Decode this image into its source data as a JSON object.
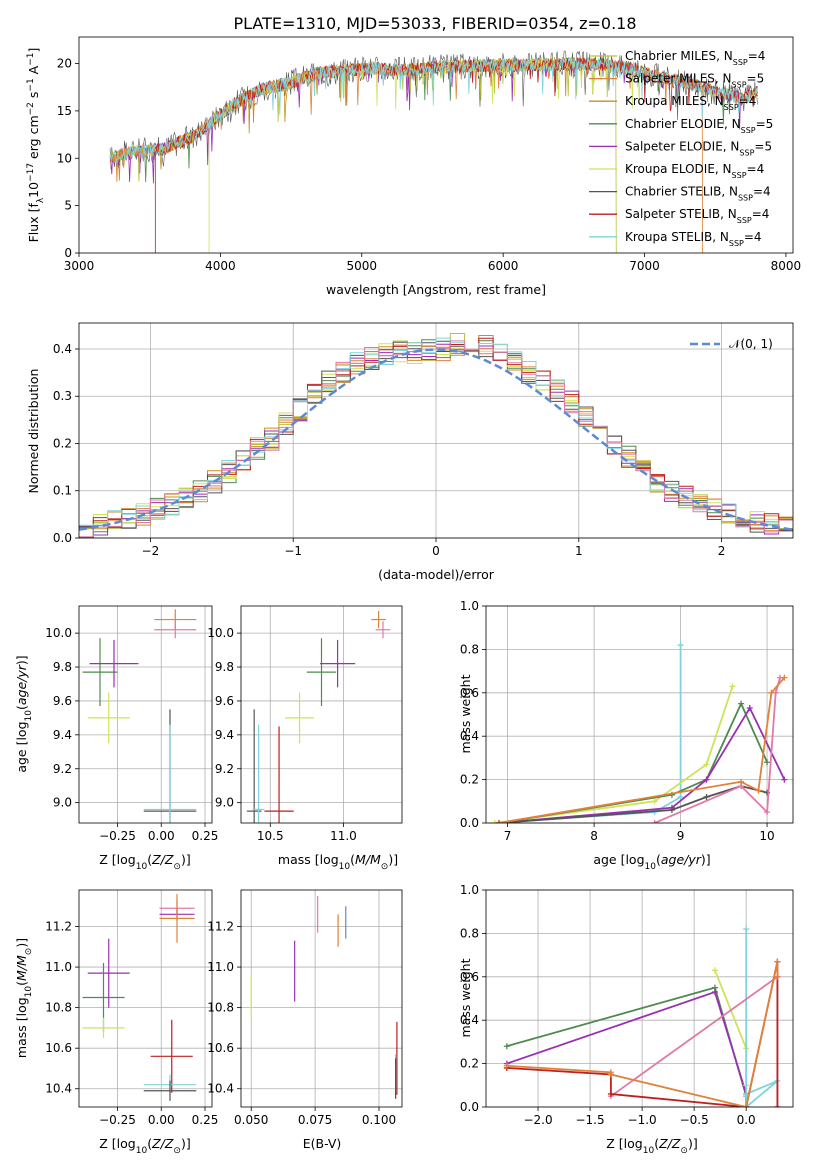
{
  "title": "PLATE=1310, MJD=53033, FIBERID=0354, z=0.18",
  "colors": {
    "Chabrier MILES": "#b5c335",
    "Salpeter MILES": "#e0823a",
    "Kroupa MILES": "#c98f1e",
    "Chabrier ELODIE": "#4f8a4f",
    "Salpeter ELODIE": "#9b2fb3",
    "Kroupa ELODIE": "#cfe35a",
    "Chabrier STELIB": "#555555",
    "Salpeter STELIB": "#bf1f1f",
    "Kroupa STELIB": "#7fd3de",
    "pink": "#e07aa8",
    "normal": "#5b8bd6"
  },
  "chart_data": [
    {
      "type": "line",
      "xlabel": "wavelength [Angstrom, rest frame]",
      "ylabel": "Flux [f_λ 10^-17 erg cm^-2 s^-1 A^-1]",
      "xlim": [
        3000,
        8050
      ],
      "ylim": [
        0,
        22.8
      ],
      "xticks": [
        3000,
        4000,
        5000,
        6000,
        7000,
        8000
      ],
      "yticks": [
        0,
        5,
        10,
        15,
        20
      ],
      "legend_position": "right",
      "legend": [
        {
          "label": "Chabrier MILES, N_SSP=4",
          "color": "Chabrier MILES",
          "sub": "SSP",
          "pre": "Chabrier MILES, N",
          "post": "=4"
        },
        {
          "label": "Salpeter MILES, N_SSP=5",
          "color": "Salpeter MILES",
          "sub": "SSP",
          "pre": "Salpeter MILES, N",
          "post": "=5"
        },
        {
          "label": "Kroupa MILES, N_SSP=4",
          "color": "Kroupa MILES",
          "sub": "SSP",
          "pre": "Kroupa MILES, N",
          "post": "=4"
        },
        {
          "label": "Chabrier ELODIE, N_SSP=5",
          "color": "Chabrier ELODIE",
          "sub": "SSP",
          "pre": "Chabrier ELODIE, N",
          "post": "=5"
        },
        {
          "label": "Salpeter ELODIE, N_SSP=5",
          "color": "Salpeter ELODIE",
          "sub": "SSP",
          "pre": "Salpeter ELODIE, N",
          "post": "=5"
        },
        {
          "label": "Kroupa ELODIE, N_SSP=4",
          "color": "Kroupa ELODIE",
          "sub": "SSP",
          "pre": "Kroupa ELODIE, N",
          "post": "=4"
        },
        {
          "label": "Chabrier STELIB, N_SSP=4",
          "color": "Chabrier STELIB",
          "sub": "SSP",
          "pre": "Chabrier STELIB, N",
          "post": "=4"
        },
        {
          "label": "Salpeter STELIB, N_SSP=4",
          "color": "Salpeter STELIB",
          "sub": "SSP",
          "pre": "Salpeter STELIB, N",
          "post": "=4"
        },
        {
          "label": "Kroupa STELIB, N_SSP=4",
          "color": "Kroupa STELIB",
          "sub": "SSP",
          "pre": "Kroupa STELIB, N",
          "post": "=4"
        }
      ],
      "spectrum_envelope": {
        "x": [
          3220,
          3400,
          3600,
          3800,
          3950,
          4100,
          4300,
          4500,
          4700,
          4900,
          5100,
          5300,
          5500,
          5700,
          5900,
          6100,
          6300,
          6500,
          6700,
          6900,
          7100,
          7300,
          7500,
          7700,
          7800
        ],
        "y": [
          10.0,
          10.8,
          11.0,
          12.3,
          14.0,
          15.8,
          17.3,
          18.0,
          19.0,
          19.3,
          19.5,
          19.3,
          19.6,
          19.7,
          19.8,
          19.8,
          19.9,
          20.0,
          19.9,
          19.5,
          18.6,
          18.0,
          17.0,
          16.3,
          17.0
        ]
      },
      "cut_edges": [
        {
          "model": "Salpeter STELIB",
          "x": 3540
        },
        {
          "model": "Kroupa ELODIE",
          "x": 3920
        },
        {
          "model": "Chabrier MILES",
          "x": 6800
        },
        {
          "model": "Salpeter MILES",
          "x": 7410
        }
      ]
    },
    {
      "type": "line",
      "xlabel": "(data-model)/error",
      "ylabel": "Normed distribution",
      "xlim": [
        -2.5,
        2.5
      ],
      "ylim": [
        0,
        0.455
      ],
      "xticks": [
        -2,
        -1,
        0,
        1,
        2
      ],
      "yticks": [
        0.0,
        0.1,
        0.2,
        0.3,
        0.4
      ],
      "grid": true,
      "legend_position": "top-right",
      "legend": [
        {
          "label": "𝒩(0, 1)",
          "color": "normal",
          "style": "dashed"
        }
      ],
      "bin_width": 0.1,
      "bin_start": -2.5,
      "mean_hist": [
        0.02,
        0.03,
        0.04,
        0.045,
        0.05,
        0.06,
        0.07,
        0.085,
        0.1,
        0.12,
        0.14,
        0.16,
        0.19,
        0.21,
        0.24,
        0.27,
        0.3,
        0.33,
        0.35,
        0.37,
        0.38,
        0.39,
        0.395,
        0.39,
        0.395,
        0.4,
        0.41,
        0.41,
        0.405,
        0.39,
        0.37,
        0.35,
        0.33,
        0.31,
        0.29,
        0.26,
        0.23,
        0.2,
        0.17,
        0.15,
        0.12,
        0.1,
        0.085,
        0.07,
        0.06,
        0.05,
        0.04,
        0.035,
        0.03,
        0.025
      ]
    },
    {
      "type": "scatter",
      "xlabel": "Z [log10(Z/Z☉)]",
      "ylabel": "age [log10(age/yr)]",
      "xlim": [
        -0.47,
        0.29
      ],
      "ylim": [
        8.88,
        10.16
      ],
      "xticks": [
        -0.25,
        0.0,
        0.25
      ],
      "xticklabels": [
        "−0.25",
        "0.00",
        "0.25"
      ],
      "yticks": [
        9.0,
        9.2,
        9.4,
        9.6,
        9.8,
        10.0
      ],
      "grid": true,
      "points": [
        {
          "color": "Salpeter MILES",
          "x": 0.08,
          "y": 10.08,
          "xerr": 0.12,
          "yerr": 0.06
        },
        {
          "color": "pink",
          "x": 0.08,
          "y": 10.02,
          "xerr": 0.12,
          "yerr": 0.05
        },
        {
          "color": "Chabrier ELODIE",
          "x": -0.35,
          "y": 9.77,
          "xerr": 0.1,
          "yerr": 0.2
        },
        {
          "color": "Salpeter ELODIE",
          "x": -0.27,
          "y": 9.82,
          "xerr": 0.14,
          "yerr": 0.14
        },
        {
          "color": "Kroupa ELODIE",
          "x": -0.3,
          "y": 9.5,
          "xerr": 0.12,
          "yerr": 0.15
        },
        {
          "color": "Chabrier STELIB",
          "x": 0.05,
          "y": 8.95,
          "xerr": 0.15,
          "yerr": 0.6
        },
        {
          "color": "Kroupa STELIB",
          "x": 0.05,
          "y": 8.96,
          "xerr": 0.15,
          "yerr": 0.5
        }
      ]
    },
    {
      "type": "scatter",
      "xlabel": "mass [log10(M/M☉)]",
      "ylabel": "",
      "xlim": [
        10.3,
        11.4
      ],
      "ylim": [
        8.88,
        10.16
      ],
      "xticks": [
        10.5,
        11.0
      ],
      "xticklabels": [
        "10.5",
        "11.0"
      ],
      "yticks": [
        9.0,
        9.2,
        9.4,
        9.6,
        9.8,
        10.0
      ],
      "grid": true,
      "points": [
        {
          "color": "Salpeter MILES",
          "x": 11.24,
          "y": 10.08,
          "xerr": 0.05,
          "yerr": 0.05
        },
        {
          "color": "pink",
          "x": 11.27,
          "y": 10.02,
          "xerr": 0.05,
          "yerr": 0.05
        },
        {
          "color": "Chabrier ELODIE",
          "x": 10.85,
          "y": 9.77,
          "xerr": 0.1,
          "yerr": 0.2
        },
        {
          "color": "Salpeter ELODIE",
          "x": 10.96,
          "y": 9.82,
          "xerr": 0.12,
          "yerr": 0.14
        },
        {
          "color": "Kroupa ELODIE",
          "x": 10.7,
          "y": 9.5,
          "xerr": 0.1,
          "yerr": 0.15
        },
        {
          "color": "Chabrier STELIB",
          "x": 10.39,
          "y": 8.95,
          "xerr": 0.05,
          "yerr": 0.6
        },
        {
          "color": "Salpeter STELIB",
          "x": 10.56,
          "y": 8.95,
          "xerr": 0.1,
          "yerr": 0.5
        },
        {
          "color": "Kroupa STELIB",
          "x": 10.42,
          "y": 8.96,
          "xerr": 0.04,
          "yerr": 0.5
        }
      ]
    },
    {
      "type": "line",
      "xlabel": "age [log10(age/yr)]",
      "ylabel": "mass weight",
      "xlim": [
        6.75,
        10.3
      ],
      "ylim": [
        0,
        1.0
      ],
      "xticks": [
        7,
        8,
        9,
        10
      ],
      "yticks": [
        0.0,
        0.2,
        0.4,
        0.6,
        0.8,
        1.0
      ],
      "grid": true,
      "series": [
        {
          "color": "Kroupa STELIB",
          "x": [
            6.85,
            8.7,
            9.0,
            9.0
          ],
          "y": [
            0.0,
            0.05,
            0.12,
            0.82
          ]
        },
        {
          "color": "Kroupa ELODIE",
          "x": [
            6.85,
            8.7,
            9.3,
            9.6
          ],
          "y": [
            0.0,
            0.1,
            0.27,
            0.63
          ]
        },
        {
          "color": "Chabrier ELODIE",
          "x": [
            6.9,
            8.9,
            9.3,
            9.7,
            10.0
          ],
          "y": [
            0.0,
            0.13,
            0.2,
            0.55,
            0.28
          ]
        },
        {
          "color": "Salpeter ELODIE",
          "x": [
            6.9,
            8.9,
            9.3,
            9.8,
            10.2
          ],
          "y": [
            0.0,
            0.07,
            0.2,
            0.53,
            0.2
          ]
        },
        {
          "color": "Chabrier STELIB",
          "x": [
            6.9,
            8.9,
            9.3,
            9.7,
            10.0
          ],
          "y": [
            0.0,
            0.06,
            0.12,
            0.17,
            0.14
          ]
        },
        {
          "color": "pink",
          "x": [
            8.7,
            9.7,
            10.0,
            10.1,
            10.15
          ],
          "y": [
            0.0,
            0.17,
            0.05,
            0.6,
            0.67
          ]
        },
        {
          "color": "Salpeter MILES",
          "x": [
            6.9,
            9.7,
            9.9,
            10.05,
            10.2
          ],
          "y": [
            0.0,
            0.19,
            0.15,
            0.6,
            0.67
          ]
        }
      ]
    },
    {
      "type": "scatter",
      "xlabel": "Z [log10(Z/Z☉)]",
      "ylabel": "mass [log10(M/M☉)]",
      "xlim": [
        -0.47,
        0.29
      ],
      "ylim": [
        10.31,
        11.38
      ],
      "xticks": [
        -0.25,
        0.0,
        0.25
      ],
      "xticklabels": [
        "−0.25",
        "0.00",
        "0.25"
      ],
      "yticks": [
        10.4,
        10.6,
        10.8,
        11.0,
        11.2
      ],
      "grid": true,
      "points": [
        {
          "color": "pink",
          "x": 0.09,
          "y": 11.29,
          "xerr": 0.1,
          "yerr": 0.04
        },
        {
          "color": "Salpeter ELODIE",
          "x": 0.09,
          "y": 11.26,
          "xerr": 0.1,
          "yerr": 0.03
        },
        {
          "color": "Salpeter MILES",
          "x": 0.09,
          "y": 11.24,
          "xerr": 0.1,
          "yerr": 0.12
        },
        {
          "color": "Salpeter ELODIE",
          "x": -0.3,
          "y": 10.97,
          "xerr": 0.12,
          "yerr": 0.17
        },
        {
          "color": "Chabrier ELODIE",
          "x": -0.33,
          "y": 10.85,
          "xerr": 0.12,
          "yerr": 0.17
        },
        {
          "color": "Kroupa ELODIE",
          "x": -0.33,
          "y": 10.7,
          "xerr": 0.12,
          "yerr": 0.05
        },
        {
          "color": "Salpeter STELIB",
          "x": 0.06,
          "y": 10.56,
          "xerr": 0.12,
          "yerr": 0.18
        },
        {
          "color": "Kroupa STELIB",
          "x": 0.05,
          "y": 10.42,
          "xerr": 0.15,
          "yerr": 0.05
        },
        {
          "color": "Chabrier STELIB",
          "x": 0.05,
          "y": 10.39,
          "xerr": 0.15,
          "yerr": 0.05
        }
      ]
    },
    {
      "type": "scatter",
      "xlabel": "E(B-V)",
      "ylabel": "",
      "xlim": [
        0.046,
        0.109
      ],
      "ylim": [
        10.31,
        11.38
      ],
      "xticks": [
        0.05,
        0.075,
        0.1
      ],
      "xticklabels": [
        "0.050",
        "0.075",
        "0.100"
      ],
      "yticks": [
        10.4,
        10.6,
        10.8,
        11.0,
        11.2
      ],
      "grid": true,
      "points": [
        {
          "color": "Kroupa ELODIE",
          "x": 0.05,
          "y": 10.86,
          "xerr": 0,
          "yerr": 0.1
        },
        {
          "color": "Salpeter ELODIE",
          "x": 0.067,
          "y": 10.98,
          "xerr": 0,
          "yerr": 0.15
        },
        {
          "color": "pink",
          "x": 0.076,
          "y": 11.26,
          "xerr": 0,
          "yerr": 0.09
        },
        {
          "color": "Salpeter MILES",
          "x": 0.084,
          "y": 11.18,
          "xerr": 0,
          "yerr": 0.08
        },
        {
          "color": "normal",
          "x": 0.087,
          "y": 11.22,
          "xerr": 0,
          "yerr": 0.08
        },
        {
          "color": "Salpeter STELIB",
          "x": 0.107,
          "y": 10.55,
          "xerr": 0,
          "yerr": 0.18
        },
        {
          "color": "Kroupa STELIB",
          "x": 0.1065,
          "y": 10.47,
          "xerr": 0,
          "yerr": 0.1
        },
        {
          "color": "Chabrier STELIB",
          "x": 0.1065,
          "y": 10.45,
          "xerr": 0,
          "yerr": 0.1
        }
      ]
    },
    {
      "type": "line",
      "xlabel": "Z [log10(Z/Z☉)]",
      "ylabel": "mass weight",
      "xlim": [
        -2.5,
        0.45
      ],
      "ylim": [
        0,
        1.0
      ],
      "xticks": [
        -2.0,
        -1.5,
        -1.0,
        -0.5,
        0.0
      ],
      "xticklabels": [
        "−2.0",
        "−1.5",
        "−1.0",
        "−0.5",
        "0.0"
      ],
      "yticks": [
        0.0,
        0.2,
        0.4,
        0.6,
        0.8,
        1.0
      ],
      "grid": true,
      "series": [
        {
          "color": "Chabrier ELODIE",
          "x": [
            -2.3,
            -0.3,
            0.0,
            0.0
          ],
          "y": [
            0.28,
            0.55,
            0.05,
            0.0
          ]
        },
        {
          "color": "Salpeter ELODIE",
          "x": [
            -2.3,
            -0.3,
            0.0,
            0.0
          ],
          "y": [
            0.2,
            0.53,
            0.06,
            0.0
          ]
        },
        {
          "color": "Kroupa ELODIE",
          "x": [
            -0.3,
            0.0,
            0.0
          ],
          "y": [
            0.63,
            0.27,
            0.1
          ]
        },
        {
          "color": "Kroupa STELIB",
          "x": [
            0.0,
            0.0,
            0.0,
            0.3,
            0.0
          ],
          "y": [
            0.82,
            0.05,
            0.0,
            0.12,
            0.06
          ]
        },
        {
          "color": "pink",
          "x": [
            -1.3,
            0.3,
            0.3
          ],
          "y": [
            0.05,
            0.6,
            0.0
          ]
        },
        {
          "color": "Salpeter STELIB",
          "x": [
            -2.3,
            -1.3,
            -1.3,
            0.0,
            0.3,
            0.3
          ],
          "y": [
            0.18,
            0.15,
            0.06,
            0.0,
            0.67,
            0.0
          ]
        },
        {
          "color": "Salpeter MILES",
          "x": [
            -2.3,
            -1.3,
            -1.3,
            0.0,
            0.3,
            0.3
          ],
          "y": [
            0.19,
            0.16,
            0.15,
            0.0,
            0.67,
            0.6
          ]
        }
      ]
    }
  ]
}
